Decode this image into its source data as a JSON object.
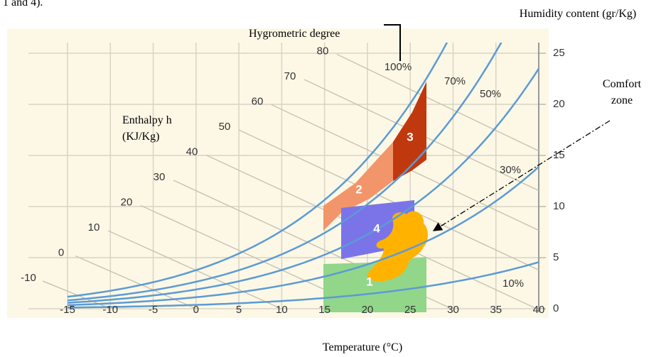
{
  "caption_fragment": "1 and 4).",
  "chart_data": {
    "type": "psychrometric",
    "xlabel": "Temperature (°C)",
    "ylabel": "Humidity content (gr/Kg)",
    "xlim": [
      -15,
      40
    ],
    "ylim": [
      0,
      25
    ],
    "xticks": [
      -15,
      -10,
      -5,
      0,
      5,
      10,
      15,
      20,
      25,
      30,
      35,
      40
    ],
    "yticks": [
      0,
      5,
      10,
      15,
      20,
      25
    ],
    "grid": true,
    "rh_title": "Hygrometric degree",
    "rh_curves": [
      {
        "value": 100,
        "label": "100%"
      },
      {
        "value": 70,
        "label": "70%"
      },
      {
        "value": 50,
        "label": "50%"
      },
      {
        "value": 30,
        "label": "30%"
      },
      {
        "value": 10,
        "label": "10%"
      }
    ],
    "curve_color": "#5b9bd5",
    "enthalpy_title": "Enthalpy h (KJ/Kg)",
    "enthalpy_lines": [
      -10,
      0,
      10,
      20,
      30,
      40,
      50,
      60,
      70,
      80
    ],
    "zones": [
      {
        "label": "1",
        "color": "#92d68a"
      },
      {
        "label": "2",
        "color": "#f2956a"
      },
      {
        "label": "3",
        "color": "#c0390e"
      },
      {
        "label": "4",
        "color": "#7b74e8"
      }
    ],
    "comfort_zone": {
      "label": "Comfort zone",
      "color": "#ffb300"
    }
  }
}
